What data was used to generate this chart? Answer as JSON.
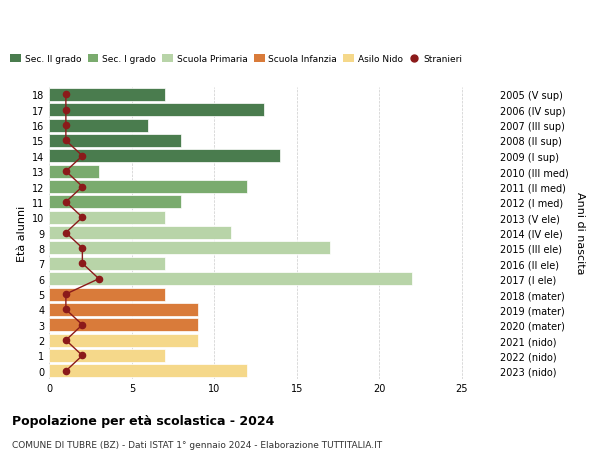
{
  "ages": [
    18,
    17,
    16,
    15,
    14,
    13,
    12,
    11,
    10,
    9,
    8,
    7,
    6,
    5,
    4,
    3,
    2,
    1,
    0
  ],
  "right_labels": [
    "2005 (V sup)",
    "2006 (IV sup)",
    "2007 (III sup)",
    "2008 (II sup)",
    "2009 (I sup)",
    "2010 (III med)",
    "2011 (II med)",
    "2012 (I med)",
    "2013 (V ele)",
    "2014 (IV ele)",
    "2015 (III ele)",
    "2016 (II ele)",
    "2017 (I ele)",
    "2018 (mater)",
    "2019 (mater)",
    "2020 (mater)",
    "2021 (nido)",
    "2022 (nido)",
    "2023 (nido)"
  ],
  "bar_values": [
    7,
    13,
    6,
    8,
    14,
    3,
    12,
    8,
    7,
    11,
    17,
    7,
    22,
    7,
    9,
    9,
    9,
    7,
    12
  ],
  "bar_colors": [
    "#4a7c4e",
    "#4a7c4e",
    "#4a7c4e",
    "#4a7c4e",
    "#4a7c4e",
    "#7aab6e",
    "#7aab6e",
    "#7aab6e",
    "#b8d4a8",
    "#b8d4a8",
    "#b8d4a8",
    "#b8d4a8",
    "#b8d4a8",
    "#d97b3a",
    "#d97b3a",
    "#d97b3a",
    "#f5d88a",
    "#f5d88a",
    "#f5d88a"
  ],
  "stranieri_values": [
    1,
    1,
    1,
    1,
    2,
    1,
    2,
    1,
    2,
    1,
    2,
    2,
    3,
    1,
    1,
    2,
    1,
    2,
    1
  ],
  "stranieri_color": "#8b1a1a",
  "title": "Popolazione per età scolastica - 2024",
  "subtitle": "COMUNE DI TUBRE (BZ) - Dati ISTAT 1° gennaio 2024 - Elaborazione TUTTITALIA.IT",
  "xlim": [
    0,
    27
  ],
  "legend_labels": [
    "Sec. II grado",
    "Sec. I grado",
    "Scuola Primaria",
    "Scuola Infanzia",
    "Asilo Nido",
    "Stranieri"
  ],
  "legend_colors": [
    "#4a7c4e",
    "#7aab6e",
    "#b8d4a8",
    "#d97b3a",
    "#f5d88a",
    "#8b1a1a"
  ],
  "background_color": "#ffffff",
  "grid_color": "#cccccc"
}
